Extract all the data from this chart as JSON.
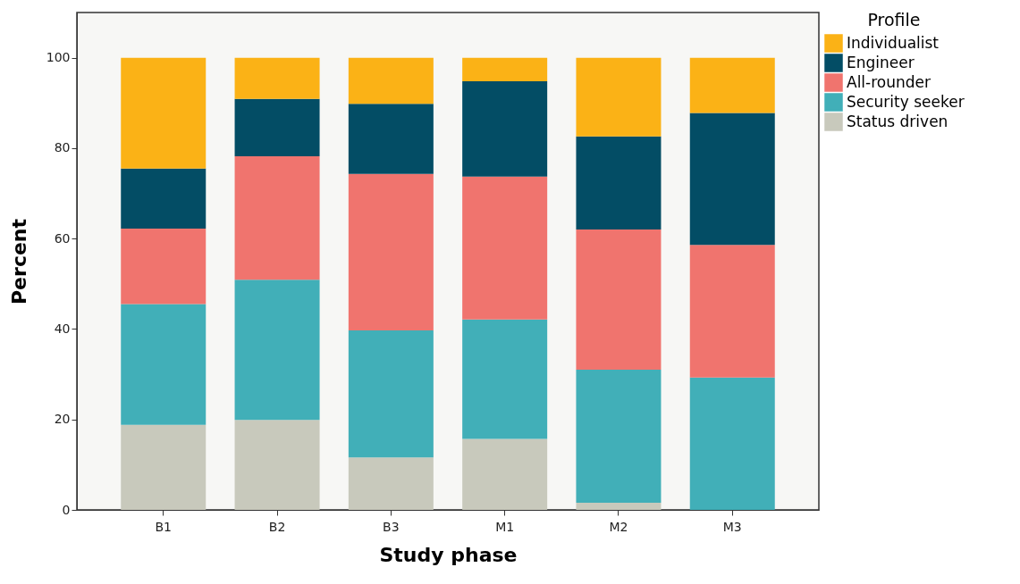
{
  "chart_data": {
    "type": "bar",
    "stacked": true,
    "xlabel": "Study phase",
    "ylabel": "Percent",
    "legend_title": "Profile",
    "legend": "right",
    "grid": false,
    "categories": [
      "B1",
      "B2",
      "B3",
      "M1",
      "M2",
      "M3"
    ],
    "ylim": [
      0,
      110
    ],
    "yticks": [
      0,
      20,
      40,
      60,
      80,
      100
    ],
    "series": [
      {
        "name": "Status driven",
        "color": "#c8c9bc",
        "values": [
          18.8,
          19.9,
          11.6,
          15.7,
          1.6,
          0
        ]
      },
      {
        "name": "Security seeker",
        "color": "#41afb8",
        "values": [
          26.7,
          31.0,
          28.1,
          26.4,
          29.4,
          29.3
        ]
      },
      {
        "name": "All-rounder",
        "color": "#f0746e",
        "values": [
          16.7,
          27.3,
          34.6,
          31.6,
          31.0,
          29.3
        ]
      },
      {
        "name": "Engineer",
        "color": "#034d65",
        "values": [
          13.3,
          12.7,
          15.5,
          21.1,
          20.6,
          29.2
        ]
      },
      {
        "name": "Individualist",
        "color": "#fbb216",
        "values": [
          24.5,
          9.1,
          10.2,
          5.2,
          17.4,
          12.2
        ]
      }
    ]
  }
}
